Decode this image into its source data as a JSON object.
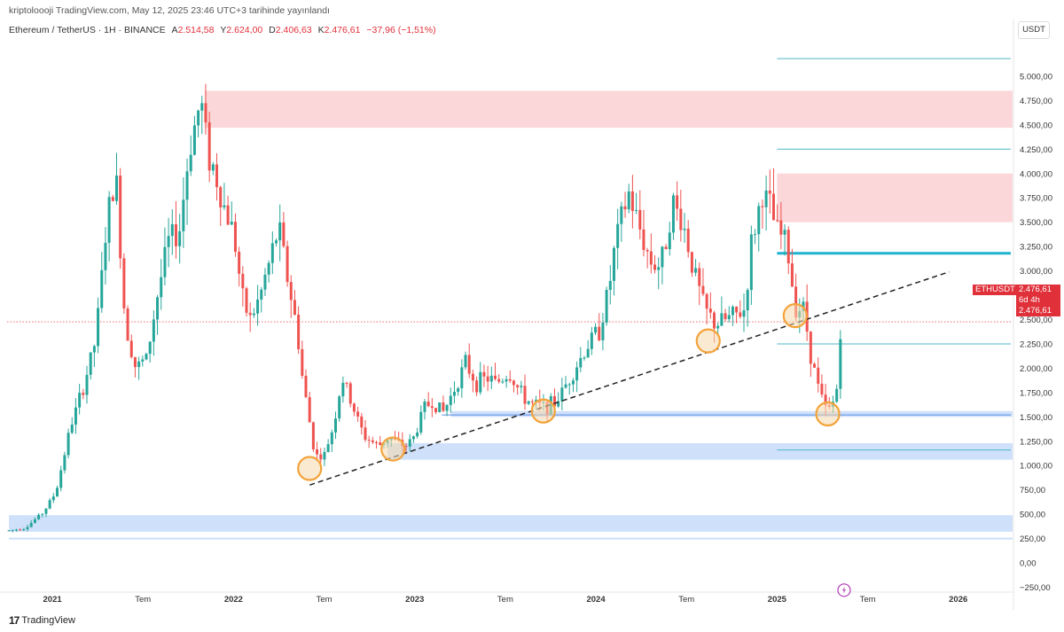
{
  "header": {
    "publisher": "kriptoloooji TradingView.com, May 12, 2025 23:46 UTC+3 tarihinde yayınlandı"
  },
  "symbol": {
    "title": "Ethereum / TetherUS · 1H · BINANCE",
    "stats": [
      {
        "k": "A",
        "v": "2.514,58"
      },
      {
        "k": "Y",
        "v": "2.624,00"
      },
      {
        "k": "D",
        "v": "2.406,63"
      },
      {
        "k": "K",
        "v": "2.476,61"
      },
      {
        "k": "",
        "v": "−37,96 (−1,51%)"
      }
    ]
  },
  "currency": "USDT",
  "footer": {
    "brand": "TradingView",
    "mark": "17"
  },
  "price_label": {
    "ticker": "ETHUSDT",
    "price": "2.476,61",
    "countdown": "6d 4h",
    "price2": "2.476,61"
  },
  "colors": {
    "up": "#26a69a",
    "down": "#ef5350",
    "resistance_zone": "#fbd7da",
    "support_zone": "#cfe0fb",
    "hline": "#4fb7c9",
    "hline_thick": "#1fb3cf",
    "circle": "#f3a33a",
    "circle_fill": "#f8d9ad",
    "trend": "#222222",
    "last_price": "#e0303a"
  },
  "chart_data": {
    "type": "candlestick",
    "title": "Ethereum / TetherUS · 1H · BINANCE",
    "ylim": [
      -300,
      5400
    ],
    "y_ticks": [
      5000,
      4750,
      4500,
      4250,
      4000,
      3750,
      3500,
      3250,
      3000,
      2750,
      2500,
      2250,
      2000,
      1750,
      1500,
      1250,
      1000,
      750,
      500,
      250,
      0,
      -250
    ],
    "y_tick_labels": [
      "5.000,00",
      "4.750,00",
      "4.500,00",
      "4.250,00",
      "4.000,00",
      "3.750,00",
      "3.500,00",
      "3.250,00",
      "3.000,00",
      "2.750,00",
      "2.500,00",
      "2.250,00",
      "2.000,00",
      "1.750,00",
      "1.500,00",
      "1.250,00",
      "1.000,00",
      "750,00",
      "500,00",
      "250,00",
      "0,00",
      "−250,00"
    ],
    "xlim": [
      2020.75,
      2026.3
    ],
    "x_ticks": [
      2021.0,
      2021.5,
      2022.0,
      2022.5,
      2023.0,
      2023.5,
      2024.0,
      2024.5,
      2025.0,
      2025.5,
      2026.0
    ],
    "x_tick_labels": [
      "2021",
      "Tem",
      "2022",
      "Tem",
      "2023",
      "Tem",
      "2024",
      "Tem",
      "2025",
      "Tem",
      "2026"
    ],
    "anchors": [
      [
        2020.75,
        330
      ],
      [
        2020.85,
        360
      ],
      [
        2020.95,
        520
      ],
      [
        2021.02,
        730
      ],
      [
        2021.1,
        1400
      ],
      [
        2021.17,
        1800
      ],
      [
        2021.24,
        2300
      ],
      [
        2021.3,
        3500
      ],
      [
        2021.35,
        4000
      ],
      [
        2021.4,
        2500
      ],
      [
        2021.46,
        2000
      ],
      [
        2021.52,
        2100
      ],
      [
        2021.58,
        2750
      ],
      [
        2021.64,
        3300
      ],
      [
        2021.7,
        3400
      ],
      [
        2021.76,
        4300
      ],
      [
        2021.82,
        4750
      ],
      [
        2021.86,
        4200
      ],
      [
        2021.9,
        4000
      ],
      [
        2021.94,
        3700
      ],
      [
        2022.0,
        3400
      ],
      [
        2022.05,
        2700
      ],
      [
        2022.09,
        2500
      ],
      [
        2022.14,
        2700
      ],
      [
        2022.2,
        3100
      ],
      [
        2022.25,
        3450
      ],
      [
        2022.3,
        2900
      ],
      [
        2022.35,
        2400
      ],
      [
        2022.38,
        1900
      ],
      [
        2022.45,
        1100
      ],
      [
        2022.5,
        1100
      ],
      [
        2022.55,
        1400
      ],
      [
        2022.6,
        1900
      ],
      [
        2022.66,
        1600
      ],
      [
        2022.72,
        1300
      ],
      [
        2022.8,
        1200
      ],
      [
        2022.86,
        1300
      ],
      [
        2022.9,
        1230
      ],
      [
        2022.95,
        1200
      ],
      [
        2023.0,
        1300
      ],
      [
        2023.05,
        1600
      ],
      [
        2023.1,
        1650
      ],
      [
        2023.16,
        1550
      ],
      [
        2023.22,
        1800
      ],
      [
        2023.28,
        2050
      ],
      [
        2023.34,
        1850
      ],
      [
        2023.4,
        1900
      ],
      [
        2023.45,
        1850
      ],
      [
        2023.52,
        1950
      ],
      [
        2023.6,
        1700
      ],
      [
        2023.66,
        1620
      ],
      [
        2023.72,
        1600
      ],
      [
        2023.78,
        1650
      ],
      [
        2023.84,
        1850
      ],
      [
        2023.9,
        2050
      ],
      [
        2023.96,
        2250
      ],
      [
        2024.02,
        2400
      ],
      [
        2024.07,
        2800
      ],
      [
        2024.11,
        3300
      ],
      [
        2024.18,
        3800
      ],
      [
        2024.23,
        3500
      ],
      [
        2024.3,
        3100
      ],
      [
        2024.36,
        3050
      ],
      [
        2024.42,
        3700
      ],
      [
        2024.48,
        3500
      ],
      [
        2024.54,
        3000
      ],
      [
        2024.6,
        2600
      ],
      [
        2024.66,
        2450
      ],
      [
        2024.72,
        2500
      ],
      [
        2024.78,
        2550
      ],
      [
        2024.82,
        2600
      ],
      [
        2024.86,
        3300
      ],
      [
        2024.92,
        3800
      ],
      [
        2024.96,
        3650
      ],
      [
        2025.0,
        3400
      ],
      [
        2025.05,
        3300
      ],
      [
        2025.1,
        2650
      ],
      [
        2025.15,
        2600
      ],
      [
        2025.18,
        2200
      ],
      [
        2025.22,
        1850
      ],
      [
        2025.26,
        1600
      ],
      [
        2025.28,
        1550
      ],
      [
        2025.31,
        1650
      ],
      [
        2025.33,
        1800
      ],
      [
        2025.35,
        2400
      ],
      [
        2025.36,
        2476
      ]
    ],
    "resistance_zones": [
      [
        4470,
        4850
      ],
      [
        3500,
        4000
      ]
    ],
    "support_zones": [
      [
        1060,
        1230
      ],
      [
        1500,
        1560
      ],
      [
        320,
        490
      ],
      [
        240,
        260
      ]
    ],
    "horizontal_lines": [
      5180,
      4250,
      3180,
      2250,
      1160
    ],
    "trendline": [
      [
        2022.42,
        800
      ],
      [
        2025.95,
        2990
      ]
    ],
    "circles": [
      [
        2022.42,
        970
      ],
      [
        2022.88,
        1170
      ],
      [
        2023.71,
        1560
      ],
      [
        2024.62,
        2280
      ],
      [
        2025.1,
        2540
      ],
      [
        2025.28,
        1530
      ]
    ],
    "last_price": 2476.61
  }
}
